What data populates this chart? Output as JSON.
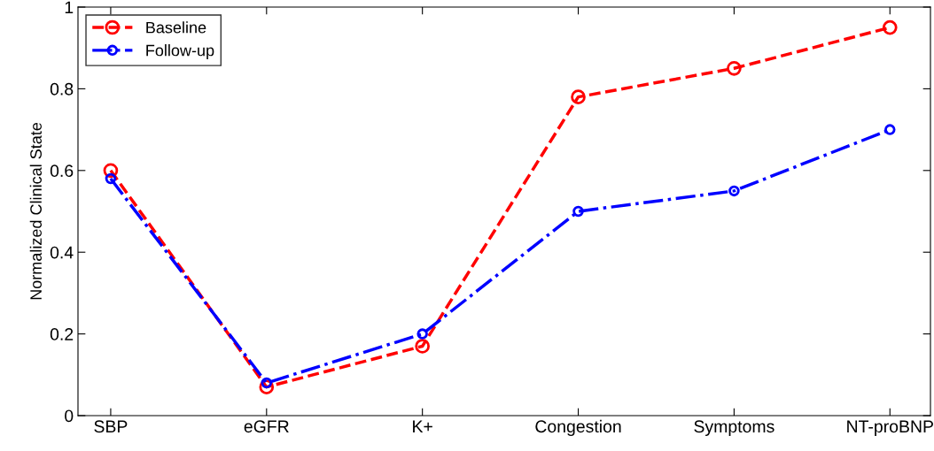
{
  "chart_data": {
    "type": "line",
    "ylabel": "Normalized Clinical State",
    "categories": [
      "SBP",
      "eGFR",
      "K+",
      "Congestion",
      "Symptoms",
      "NT-proBNP"
    ],
    "series": [
      {
        "name": "Baseline",
        "color": "#ff0000",
        "line_style": "dashed",
        "values": [
          0.6,
          0.07,
          0.17,
          0.78,
          0.85,
          0.95
        ]
      },
      {
        "name": "Follow-up",
        "color": "#0000ff",
        "line_style": "dashdot",
        "values": [
          0.58,
          0.08,
          0.2,
          0.5,
          0.55,
          0.7
        ]
      }
    ],
    "ylim": [
      0,
      1
    ],
    "yticks": [
      0,
      0.2,
      0.4,
      0.6,
      0.8,
      1
    ],
    "marker": "circle",
    "legend": "top left",
    "grid": false
  }
}
